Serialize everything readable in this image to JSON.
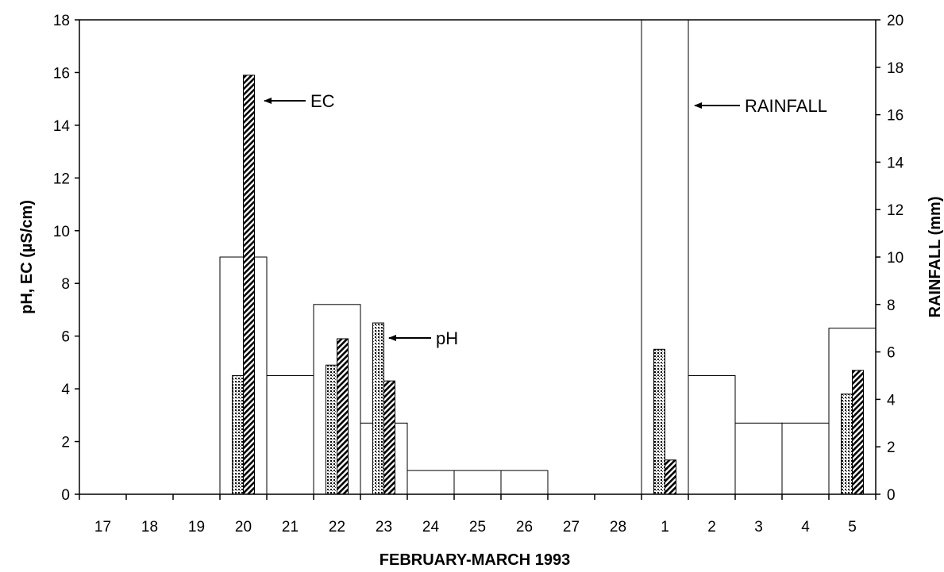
{
  "chart_data": {
    "type": "bar",
    "xlabel": "FEBRUARY-MARCH 1993",
    "ylabel_left": "pH, EC (µS/cm)",
    "ylabel_right": "RAINFALL (mm)",
    "categories": [
      "17",
      "18",
      "19",
      "20",
      "21",
      "22",
      "23",
      "24",
      "25",
      "26",
      "27",
      "28",
      "1",
      "2",
      "3",
      "4",
      "5"
    ],
    "ylim_left": [
      0,
      18
    ],
    "yticks_left": [
      "0",
      "2",
      "4",
      "6",
      "8",
      "10",
      "12",
      "14",
      "16",
      "18"
    ],
    "ylim_right": [
      0,
      20
    ],
    "yticks_right": [
      "0",
      "2",
      "4",
      "6",
      "8",
      "10",
      "12",
      "14",
      "16",
      "18",
      "20"
    ],
    "grid": false,
    "series": [
      {
        "axis": "right",
        "fill": "white",
        "values": [
          0,
          0,
          0,
          10,
          5,
          8,
          3,
          1,
          1,
          1,
          0,
          0,
          20,
          5,
          3,
          3,
          7
        ]
      },
      {
        "name": "pH",
        "axis": "left",
        "fill": "dotted",
        "values": [
          null,
          null,
          null,
          4.5,
          null,
          4.9,
          6.5,
          null,
          null,
          null,
          null,
          null,
          5.5,
          null,
          null,
          null,
          3.8
        ]
      },
      {
        "name": "EC",
        "axis": "left",
        "fill": "hatched",
        "values": [
          null,
          null,
          null,
          15.9,
          null,
          5.9,
          4.3,
          null,
          null,
          null,
          null,
          null,
          1.3,
          null,
          null,
          null,
          4.7
        ]
      }
    ],
    "annotations": [
      "EC",
      "pH",
      "RAINFALL"
    ]
  }
}
